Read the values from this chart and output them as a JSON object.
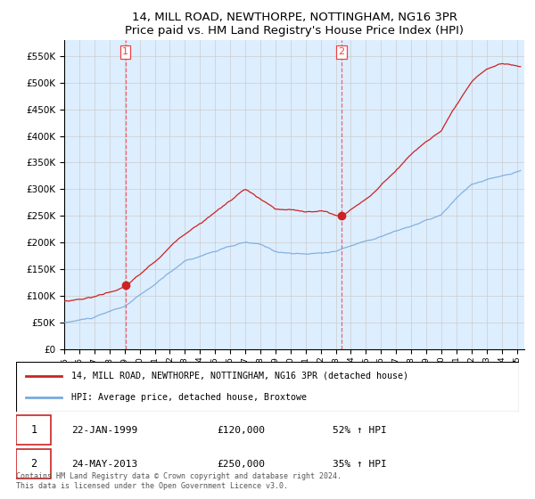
{
  "title": "14, MILL ROAD, NEWTHORPE, NOTTINGHAM, NG16 3PR",
  "subtitle": "Price paid vs. HM Land Registry's House Price Index (HPI)",
  "legend_line1": "14, MILL ROAD, NEWTHORPE, NOTTINGHAM, NG16 3PR (detached house)",
  "legend_line2": "HPI: Average price, detached house, Broxtowe",
  "sale1_date": "22-JAN-1999",
  "sale1_price": "£120,000",
  "sale1_hpi": "52% ↑ HPI",
  "sale1_year": 1999.06,
  "sale1_value": 120000,
  "sale2_date": "24-MAY-2013",
  "sale2_price": "£250,000",
  "sale2_hpi": "35% ↑ HPI",
  "sale2_year": 2013.39,
  "sale2_value": 250000,
  "hpi_color": "#7aaadd",
  "price_color": "#cc2222",
  "vline_color": "#ee4444",
  "grid_color": "#cccccc",
  "bg_color": "#ddeeff",
  "background_color": "#ffffff",
  "ylim": [
    0,
    580000
  ],
  "xlim_start": 1995.0,
  "xlim_end": 2025.5,
  "footer": "Contains HM Land Registry data © Crown copyright and database right 2024.\nThis data is licensed under the Open Government Licence v3.0.",
  "yticks": [
    0,
    50000,
    100000,
    150000,
    200000,
    250000,
    300000,
    350000,
    400000,
    450000,
    500000,
    550000
  ],
  "ytick_labels": [
    "£0",
    "£50K",
    "£100K",
    "£150K",
    "£200K",
    "£250K",
    "£300K",
    "£350K",
    "£400K",
    "£450K",
    "£500K",
    "£550K"
  ],
  "xticks": [
    1995,
    1996,
    1997,
    1998,
    1999,
    2000,
    2001,
    2002,
    2003,
    2004,
    2005,
    2006,
    2007,
    2008,
    2009,
    2010,
    2011,
    2012,
    2013,
    2014,
    2015,
    2016,
    2017,
    2018,
    2019,
    2020,
    2021,
    2022,
    2023,
    2024,
    2025
  ]
}
